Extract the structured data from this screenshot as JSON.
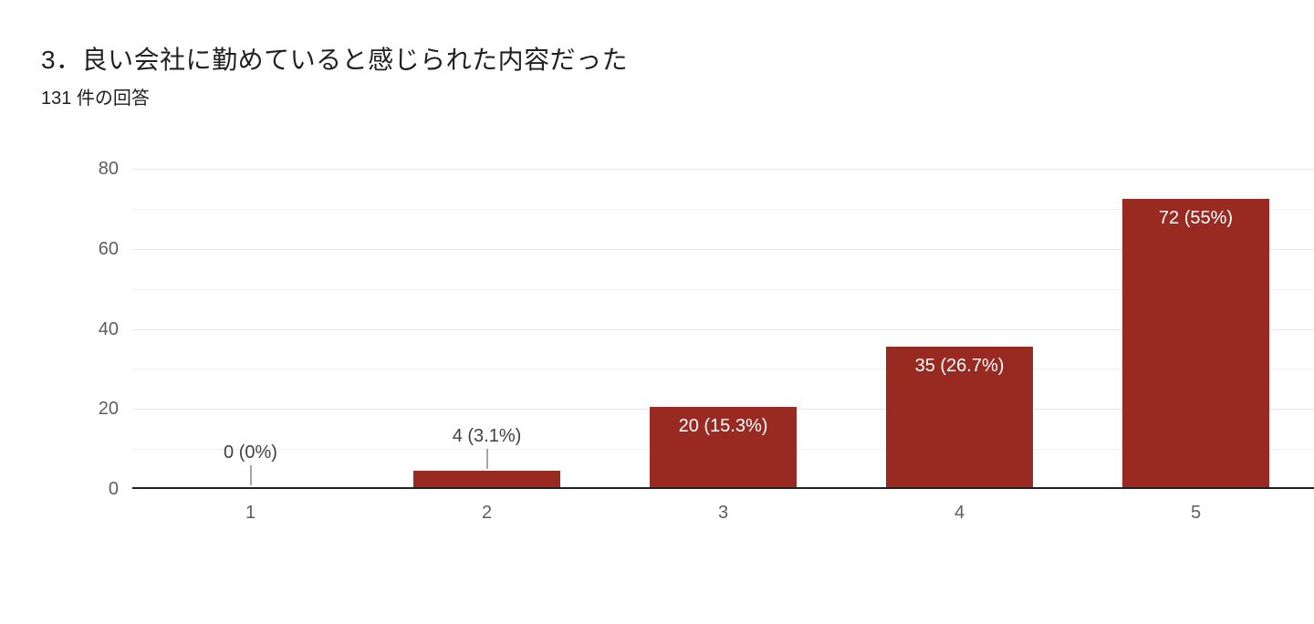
{
  "header": {
    "title": "3．良い会社に勤めていると感じられた内容だった",
    "response_count": "131 件の回答"
  },
  "chart_data": {
    "type": "bar",
    "title": "3．良い会社に勤めていると感じられた内容だった",
    "subtitle": "131 件の回答",
    "categories": [
      "1",
      "2",
      "3",
      "4",
      "5"
    ],
    "values": [
      0,
      4,
      20,
      35,
      72
    ],
    "percent_labels": [
      "0 (0%)",
      "4 (3.1%)",
      "20 (15.3%)",
      "35 (26.7%)",
      "72 (55%)"
    ],
    "xlabel": "",
    "ylabel": "",
    "ylim": [
      0,
      80
    ],
    "yticks": [
      0,
      20,
      40,
      60,
      80
    ],
    "grid_minor_step": 10,
    "grid_major_step": 20,
    "grid": "horizontal",
    "legend": "none",
    "colors": {
      "bar": "#992a22",
      "inside_label": "#ffffff",
      "outside_label": "#404040",
      "axis_label": "#5e5e5e",
      "gridline_minor": "#f0f0f0",
      "gridline_major": "#e6e6e6",
      "baseline": "#212121",
      "callout_line": "#a6a6a6",
      "background": "#ffffff"
    }
  }
}
